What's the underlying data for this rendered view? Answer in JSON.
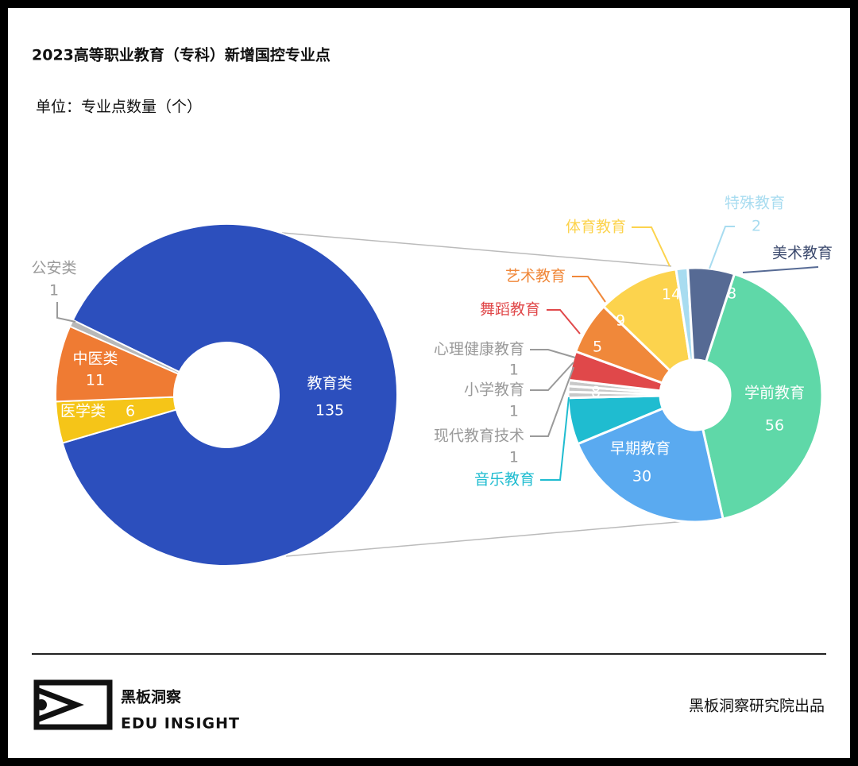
{
  "chart_data": {
    "type": "pie",
    "title": "2023高等职业教育（专科）新增国控专业点",
    "subtitle": "单位：专业点数量（个）",
    "series": [
      {
        "categories": [
          "教育类",
          "医学类",
          "中医类",
          "公安类"
        ],
        "values": [
          135,
          6,
          11,
          1
        ],
        "colors": [
          "#2c4fbd",
          "#f5c518",
          "#ef7b33",
          "#b8b8b8"
        ]
      },
      {
        "categories": [
          "学前教育",
          "早期教育",
          "音乐教育",
          "现代教育技术",
          "小学教育",
          "心理健康教育",
          "舞蹈教育",
          "艺术教育",
          "体育教育",
          "特殊教育",
          "美术教育"
        ],
        "values": [
          56,
          30,
          8,
          1,
          1,
          1,
          5,
          9,
          14,
          2,
          8
        ],
        "colors": [
          "#5fd8a8",
          "#5aaaf0",
          "#1fbcd0",
          "#c8c8c8",
          "#c8c8c8",
          "#c8c8c8",
          "#e0484a",
          "#f0883a",
          "#fcd34d",
          "#a8dcf0",
          "#566a94"
        ]
      }
    ]
  },
  "footer": {
    "brand": "黑板洞察",
    "tagline": "EDU INSIGHT",
    "credit": "黑板洞察研究院出品"
  }
}
